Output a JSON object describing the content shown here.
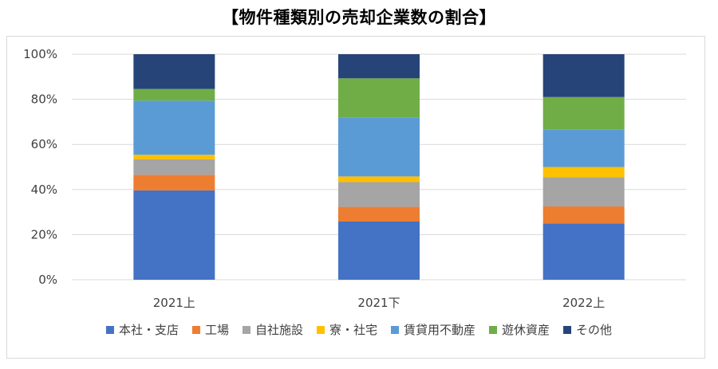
{
  "chart_data": {
    "type": "bar",
    "stacked": true,
    "percent": true,
    "title": "【物件種類別の売却企業数の割合】",
    "xlabel": "",
    "ylabel": "",
    "ylim": [
      0,
      100
    ],
    "yticks": [
      "0%",
      "20%",
      "40%",
      "60%",
      "80%",
      "100%"
    ],
    "grid": true,
    "legend_position": "bottom",
    "categories": [
      "2021上",
      "2021下",
      "2022上"
    ],
    "series": [
      {
        "name": "本社・支店",
        "color": "#4472C4",
        "values": [
          39.6,
          25.8,
          25.0
        ]
      },
      {
        "name": "工場",
        "color": "#ED7D31",
        "values": [
          6.9,
          6.5,
          7.5
        ]
      },
      {
        "name": "自社施設",
        "color": "#A5A5A5",
        "values": [
          6.9,
          11.0,
          13.0
        ]
      },
      {
        "name": "寮・社宅",
        "color": "#FFC000",
        "values": [
          2.0,
          2.5,
          4.5
        ]
      },
      {
        "name": "賃貸用不動産",
        "color": "#5B9BD5",
        "values": [
          24.0,
          26.0,
          16.5
        ]
      },
      {
        "name": "遊休資産",
        "color": "#70AD47",
        "values": [
          5.2,
          17.5,
          14.5
        ]
      },
      {
        "name": "その他",
        "color": "#264478",
        "values": [
          15.4,
          10.7,
          19.0
        ]
      }
    ]
  }
}
